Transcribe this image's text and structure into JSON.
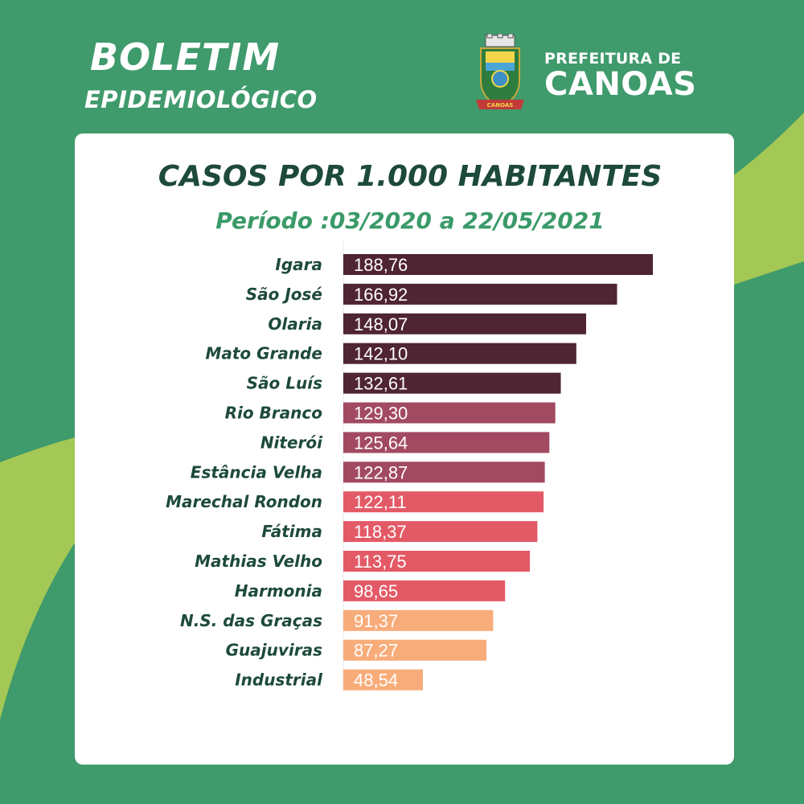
{
  "header": {
    "title_line1": "BOLETIM",
    "title_line2": "EPIDEMIOLÓGICO",
    "org_line1": "PREFEITURA DE",
    "org_line2": "CANOAS",
    "crest_banner": "CANOAS"
  },
  "colors": {
    "background": "#3f9a6c",
    "accent_lime": "#a3c855",
    "card": "#ffffff",
    "title": "#1d4a3a",
    "subtitle": "#3a9a68",
    "band_1": "#4f2433",
    "band_2": "#a24a62",
    "band_3": "#e35a66",
    "band_4": "#f8ac7a",
    "muted_label": "#6a6a6a"
  },
  "chart_data": {
    "type": "bar",
    "orientation": "horizontal",
    "title": "CASOS POR 1.000 HABITANTES",
    "subtitle": "Período :03/2020 a 22/05/2021",
    "categories": [
      "Igara",
      "São José",
      "Olaria",
      "Mato Grande",
      "São Luís",
      "Rio Branco",
      "Niterói",
      "Estância Velha",
      "Marechal Rondon",
      "Fátima",
      "Mathias Velho",
      "Harmonia",
      "N.S. das Graças",
      "Guajuviras",
      "Industrial"
    ],
    "values": [
      188.76,
      166.92,
      148.07,
      142.1,
      132.61,
      129.3,
      125.64,
      122.87,
      122.11,
      118.37,
      113.75,
      98.65,
      91.37,
      87.27,
      48.54
    ],
    "value_labels": [
      "188,76",
      "166,92",
      "148,07",
      "142,10",
      "132,61",
      "129,30",
      "125,64",
      "122,87",
      "122,11",
      "118,37",
      "113,75",
      "98,65",
      "91,37",
      "87,27",
      "48,54"
    ],
    "bar_colors": [
      "#4f2433",
      "#4f2433",
      "#4f2433",
      "#4f2433",
      "#4f2433",
      "#a24a62",
      "#a24a62",
      "#a24a62",
      "#e35a66",
      "#e35a66",
      "#e35a66",
      "#e35a66",
      "#f8ac7a",
      "#f8ac7a",
      "#f8ac7a"
    ],
    "label_colors": [
      "#1d4a3a",
      "#1d4a3a",
      "#1d4a3a",
      "#1d4a3a",
      "#1d4a3a",
      "#1d4a3a",
      "#1d4a3a",
      "#1d4a3a",
      "#1d4a3a",
      "#1d4a3a",
      "#1d4a3a",
      "#1d4a3a",
      "#1d4a3a",
      "#1d4a3a",
      "#6a6a6a"
    ],
    "xlim": [
      0,
      200
    ],
    "grid": false,
    "legend": "none"
  }
}
